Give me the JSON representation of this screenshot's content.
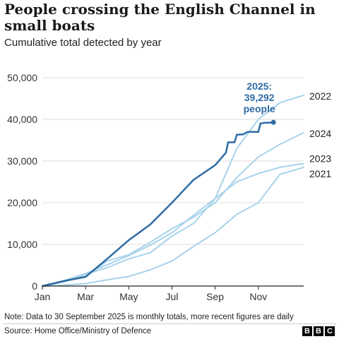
{
  "header": {
    "title": "People crossing the English Channel in small boats",
    "subtitle": "Cumulative total detected by year"
  },
  "footer": {
    "note": "Note: Data to 30 September 2025 is monthly totals, more recent figures are daily",
    "source": "Source: Home Office/Ministry of Defence",
    "logo": [
      "B",
      "B",
      "C"
    ]
  },
  "chart_data": {
    "type": "line",
    "title": "People crossing the English Channel in small boats",
    "subtitle": "Cumulative total detected by year",
    "xlabel": "",
    "ylabel": "",
    "x_range": [
      0,
      12.1
    ],
    "ylim": [
      0,
      50000
    ],
    "y_ticks": [
      0,
      10000,
      20000,
      30000,
      40000,
      50000
    ],
    "y_tick_labels": [
      "0",
      "10,000",
      "20,000",
      "30,000",
      "40,000",
      "50,000"
    ],
    "x_ticks": [
      0,
      2,
      4,
      6,
      8,
      10
    ],
    "x_tick_labels": [
      "Jan",
      "Mar",
      "May",
      "Jul",
      "Sep",
      "Nov"
    ],
    "grid": "horizontal",
    "colors": {
      "highlight": "#2e6ca4",
      "other": "#a8d3ea",
      "grid": "#dddddd",
      "axis": "#222222"
    },
    "series": [
      {
        "name": "2021",
        "label": "2021",
        "x": [
          0,
          1,
          2,
          3,
          4,
          5,
          6,
          7,
          8,
          9,
          10,
          11,
          12.1
        ],
        "values": [
          0,
          200,
          600,
          1500,
          2300,
          3900,
          6000,
          9500,
          12800,
          17200,
          20000,
          26800,
          28500
        ]
      },
      {
        "name": "2022",
        "label": "2022",
        "x": [
          0,
          1,
          2,
          3,
          4,
          5,
          6,
          7,
          8,
          9,
          10,
          11,
          12.1
        ],
        "values": [
          0,
          1000,
          2800,
          4400,
          6500,
          8000,
          12000,
          15000,
          21000,
          33000,
          40000,
          44000,
          45800
        ]
      },
      {
        "name": "2023",
        "label": "2023",
        "x": [
          0,
          1,
          2,
          3,
          4,
          5,
          6,
          7,
          8,
          9,
          10,
          11,
          12.1
        ],
        "values": [
          0,
          1300,
          3000,
          5100,
          7300,
          9800,
          12800,
          17000,
          21000,
          25000,
          27000,
          28500,
          29400
        ]
      },
      {
        "name": "2024",
        "label": "2024",
        "x": [
          0,
          1,
          2,
          3,
          4,
          5,
          6,
          7,
          8,
          9,
          10,
          11,
          12.1
        ],
        "values": [
          0,
          1200,
          2300,
          6000,
          7500,
          10500,
          13800,
          16500,
          20000,
          26000,
          31000,
          34000,
          36800
        ]
      },
      {
        "name": "2025",
        "label": "2025: 39,292 people",
        "label_lines": [
          "2025:",
          "39,292",
          "people"
        ],
        "highlight": true,
        "x": [
          0,
          1,
          2,
          3,
          4,
          5,
          6,
          7,
          8,
          8.5,
          8.6,
          8.9,
          9.0,
          9.3,
          9.5,
          9.6,
          10.0,
          10.1,
          10.3,
          10.5,
          10.7
        ],
        "values": [
          0,
          1200,
          2200,
          6500,
          11000,
          14800,
          20000,
          25500,
          29000,
          32000,
          34500,
          34500,
          36300,
          36400,
          37000,
          37000,
          37000,
          39000,
          39200,
          39200,
          39292
        ],
        "final_value": 39292
      }
    ]
  }
}
